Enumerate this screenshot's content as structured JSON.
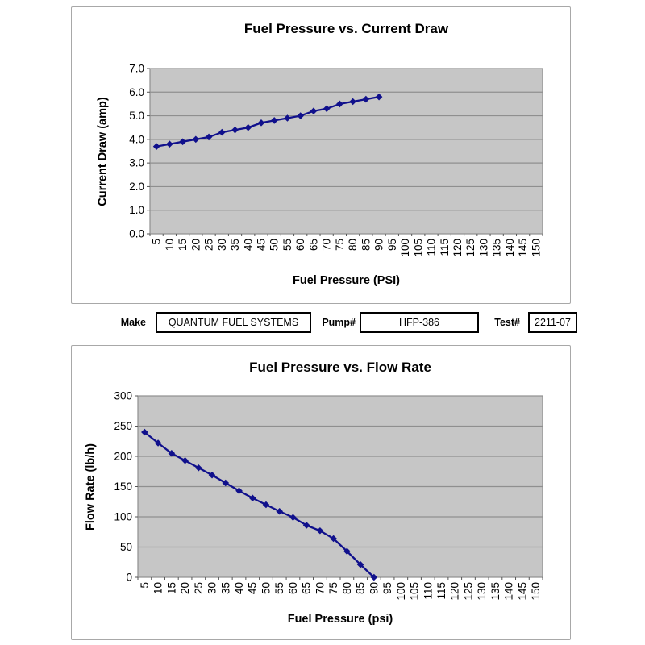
{
  "fields": {
    "make_label": "Make",
    "make_value": "QUANTUM FUEL SYSTEMS",
    "pump_label": "Pump#",
    "pump_value": "HFP-386",
    "test_label": "Test#",
    "test_value": "2211-07"
  },
  "colors": {
    "plot_bg": "#c6c6c6",
    "gridline": "#8f8f8f",
    "series_line": "#10108c",
    "tick_mark": "#555555",
    "box_border": "#a8a8a8"
  },
  "chart_data": [
    {
      "type": "line",
      "title": "Fuel Pressure vs. Current Draw",
      "xlabel": "Fuel Pressure (PSI)",
      "ylabel": "Current Draw (amp)",
      "categories": [
        5,
        10,
        15,
        20,
        25,
        30,
        35,
        40,
        45,
        50,
        55,
        60,
        65,
        70,
        75,
        80,
        85,
        90,
        95,
        100,
        105,
        110,
        115,
        120,
        125,
        130,
        135,
        140,
        145,
        150
      ],
      "series": [
        {
          "name": "Current Draw",
          "values": [
            3.7,
            3.8,
            3.9,
            4.0,
            4.1,
            4.3,
            4.4,
            4.5,
            4.7,
            4.8,
            4.9,
            5.0,
            5.2,
            5.3,
            5.5,
            5.6,
            5.7,
            5.8,
            null,
            null,
            null,
            null,
            null,
            null,
            null,
            null,
            null,
            null,
            null,
            null
          ]
        }
      ],
      "ylim": [
        0,
        7
      ],
      "ytick_step": 1,
      "ytick_decimals": 1,
      "grid": true,
      "legend": "none",
      "marker": "diamond",
      "plot_bg": "#c6c6c6",
      "grid_color": "#8f8f8f",
      "line_color": "#10108c"
    },
    {
      "type": "line",
      "title": "Fuel Pressure vs. Flow Rate",
      "xlabel": "Fuel Pressure (psi)",
      "ylabel": "Flow Rate (lb/h)",
      "categories": [
        5,
        10,
        15,
        20,
        25,
        30,
        35,
        40,
        45,
        50,
        55,
        60,
        65,
        70,
        75,
        80,
        85,
        90,
        95,
        100,
        105,
        110,
        115,
        120,
        125,
        130,
        135,
        140,
        145,
        150
      ],
      "series": [
        {
          "name": "Flow Rate",
          "values": [
            240,
            222,
            205,
            193,
            181,
            169,
            156,
            143,
            131,
            120,
            109,
            99,
            86,
            77,
            64,
            43,
            21,
            0,
            null,
            null,
            null,
            null,
            null,
            null,
            null,
            null,
            null,
            null,
            null,
            null
          ]
        }
      ],
      "ylim": [
        0,
        300
      ],
      "ytick_step": 50,
      "ytick_decimals": 0,
      "grid": true,
      "legend": "none",
      "marker": "diamond",
      "plot_bg": "#c6c6c6",
      "grid_color": "#8f8f8f",
      "line_color": "#10108c"
    }
  ]
}
